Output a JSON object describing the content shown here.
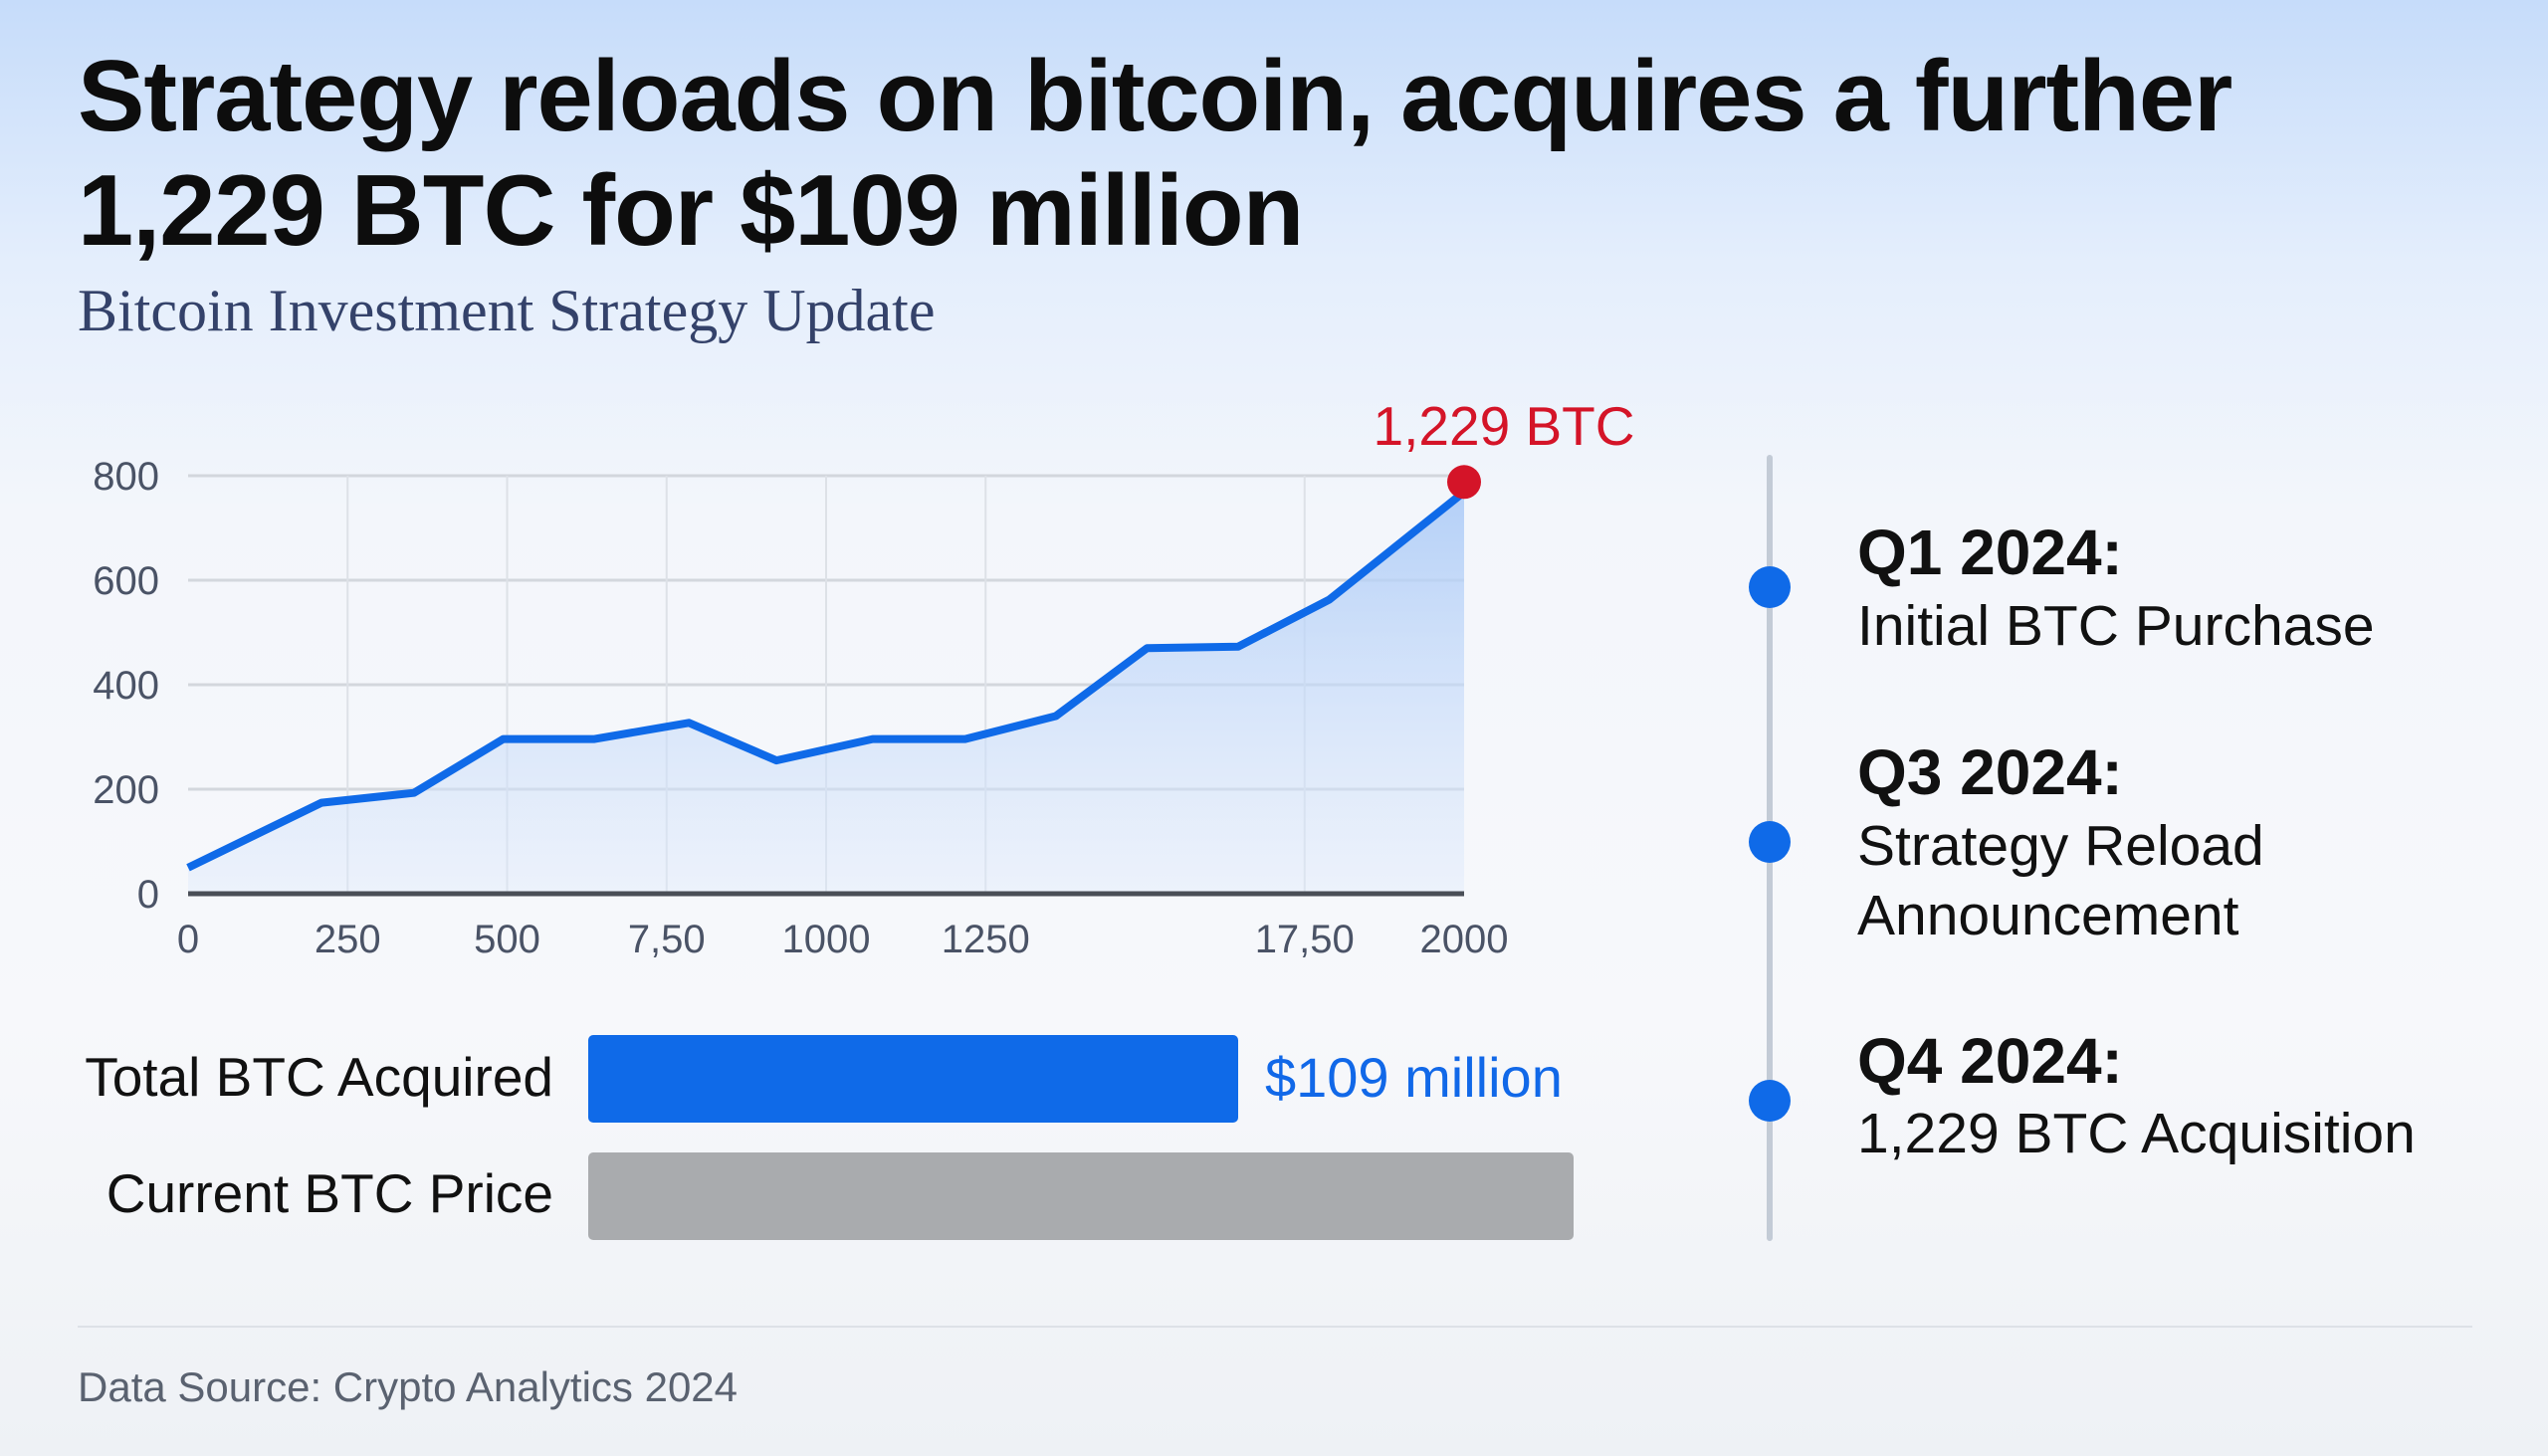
{
  "header": {
    "title": "Strategy reloads on bitcoin, acquires a further 1,229 BTC for $109 million",
    "subtitle": "Bitcoin Investment Strategy Update"
  },
  "chart_data": {
    "type": "area",
    "x_ticks": [
      "0",
      "250",
      "500",
      "7,50",
      "1000",
      "1250",
      "17,50",
      "2000"
    ],
    "x_tick_values": [
      0,
      250,
      500,
      750,
      1000,
      1250,
      1750,
      2000
    ],
    "y_ticks": [
      "0",
      "200",
      "400",
      "600",
      "800"
    ],
    "xlim": [
      0,
      2000
    ],
    "ylim": [
      0,
      800
    ],
    "grid": true,
    "x": [
      0,
      209,
      354,
      494,
      637,
      785,
      922,
      1073,
      1218,
      1360,
      1503,
      1646,
      1789,
      2000
    ],
    "y": [
      50,
      174,
      193,
      296,
      296,
      327,
      255,
      296,
      296,
      340,
      470,
      473,
      563,
      769
    ],
    "line_color": "#0f6ae8",
    "highlight": {
      "label": "1,229 BTC",
      "color": "#d41428"
    }
  },
  "bars": [
    {
      "label": "Total BTC Acquired",
      "value_label": "$109 million",
      "fraction": 0.66,
      "color": "#0f6ae8"
    },
    {
      "label": "Current BTC Price",
      "fraction": 1.0,
      "color": "#a9abae"
    }
  ],
  "timeline": [
    {
      "period": "Q1 2024:",
      "lines": [
        "Initial BTC Purchase"
      ]
    },
    {
      "period": "Q3 2024:",
      "lines": [
        "Strategy Reload",
        "Announcement"
      ]
    },
    {
      "period": "Q4 2024:",
      "lines": [
        "1,229 BTC Acquisition"
      ]
    }
  ],
  "footer": {
    "source": "Data Source: Crypto Analytics 2024"
  }
}
